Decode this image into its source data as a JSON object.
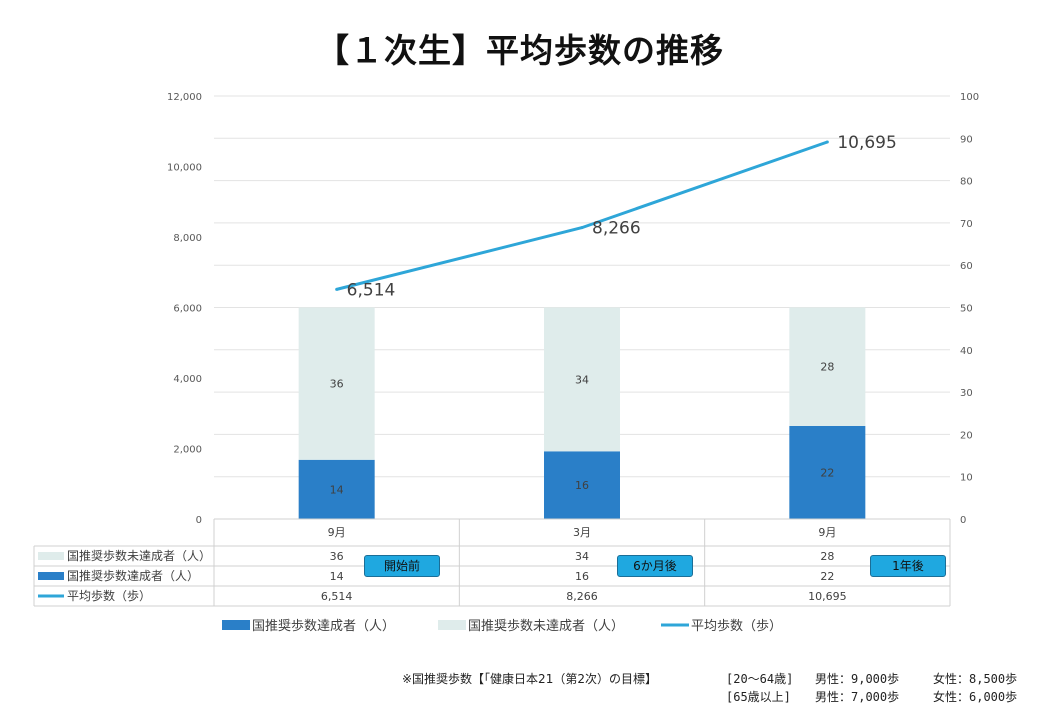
{
  "title": "【１次生】平均歩数の推移",
  "chart_data": {
    "type": "bar",
    "categories": [
      "9月",
      "3月",
      "9月"
    ],
    "series": [
      {
        "name": "国推奨歩数達成者（人）",
        "type": "stacked-bar",
        "axis": "right",
        "color": "#2a7fc8",
        "values": [
          14,
          16,
          22
        ]
      },
      {
        "name": "国推奨歩数未達成者（人）",
        "type": "stacked-bar",
        "axis": "right",
        "color": "#dfeceb",
        "values": [
          36,
          34,
          28
        ]
      },
      {
        "name": "平均歩数（歩）",
        "type": "line",
        "axis": "left",
        "color": "#2ea6d8",
        "values": [
          6514,
          8266,
          10695
        ],
        "labels": [
          "6,514",
          "8,266",
          "10,695"
        ]
      }
    ],
    "left_axis": {
      "ylim": [
        0,
        12000
      ],
      "ticks": [
        "0",
        "2,000",
        "4,000",
        "6,000",
        "8,000",
        "10,000",
        "12,000"
      ]
    },
    "right_axis": {
      "ylim": [
        0,
        100
      ],
      "ticks": [
        "0",
        "10",
        "20",
        "30",
        "40",
        "50",
        "60",
        "70",
        "80",
        "90",
        "100"
      ]
    },
    "grid": true,
    "legend": "bottom",
    "data_table": {
      "rows": [
        {
          "label": "国推奨歩数未達成者（人）",
          "values": [
            "36",
            "34",
            "28"
          ]
        },
        {
          "label": "国推奨歩数達成者（人）",
          "values": [
            "14",
            "16",
            "22"
          ]
        },
        {
          "label": "平均歩数（歩）",
          "values": [
            "6,514",
            "8,266",
            "10,695"
          ]
        }
      ]
    },
    "annotations": [
      "開始前",
      "6か月後",
      "1年後"
    ]
  },
  "footnote": {
    "prefix": "※国推奨歩数【「健康日本21（第2次）の目標】",
    "rows": [
      {
        "age": "[20～64歳]",
        "male": "男性：9,000歩",
        "female": "女性：8,500歩"
      },
      {
        "age": "[65歳以上]",
        "male": "男性：7,000歩",
        "female": "女性：6,000歩"
      }
    ]
  }
}
